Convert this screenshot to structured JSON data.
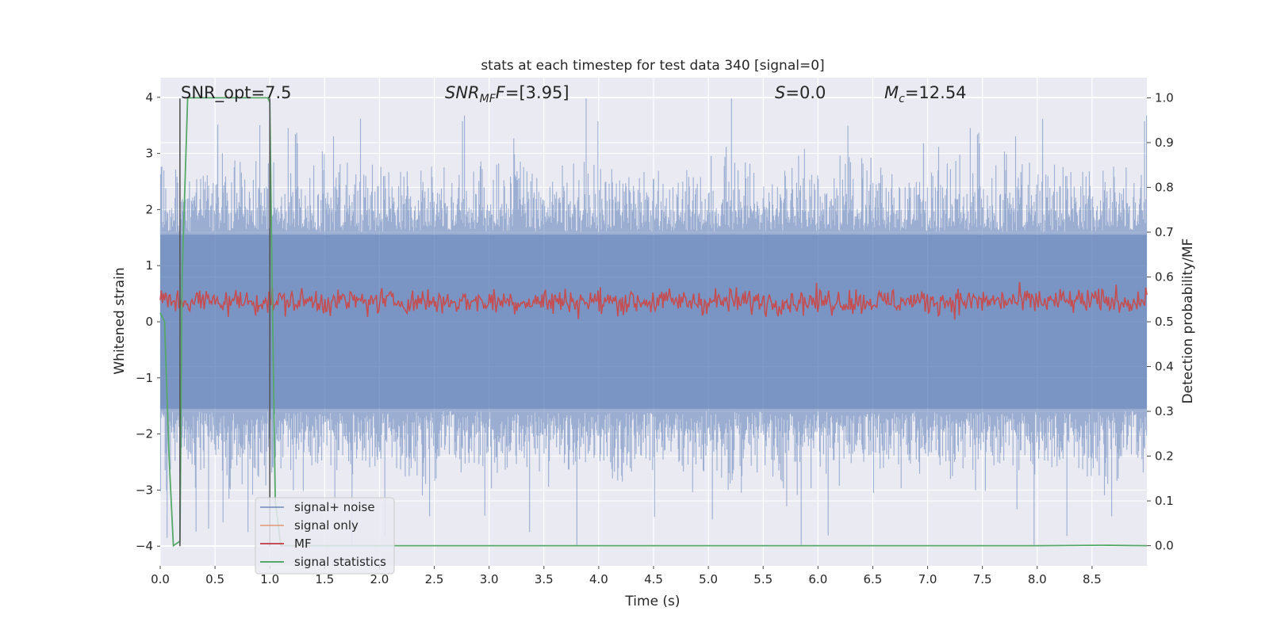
{
  "chart_data": {
    "type": "line",
    "title": "stats at each timestep for test data 340 [signal=0]",
    "xlabel": "Time (s)",
    "ylabel": "Whitened strain",
    "ylabel_right": "Detection probability/MF",
    "xlim": [
      0.0,
      9.0
    ],
    "ylim": [
      -4.35,
      4.35
    ],
    "ylim_right": [
      -0.045,
      1.045
    ],
    "xticks": [
      "0.0",
      "0.5",
      "1.0",
      "1.5",
      "2.0",
      "2.5",
      "3.0",
      "3.5",
      "4.0",
      "4.5",
      "5.0",
      "5.5",
      "6.0",
      "6.5",
      "7.0",
      "7.5",
      "8.0",
      "8.5"
    ],
    "yticks": [
      "4",
      "3",
      "2",
      "1",
      "0",
      "−1",
      "−2",
      "−3",
      "−4"
    ],
    "yticks_right": [
      "1.0",
      "0.9",
      "0.8",
      "0.7",
      "0.6",
      "0.5",
      "0.4",
      "0.3",
      "0.2",
      "0.1",
      "0.0"
    ],
    "grid": true,
    "background": "#eaeaf2",
    "legend_placement": "lower-left",
    "annotations": {
      "snr_opt": "SNR_opt=7.5",
      "snr_mf_main": "SNR",
      "snr_mf_sub": "MF",
      "snr_mf_rest": "=[3.95]",
      "s_main": "S",
      "s_rest": "=0.0",
      "mc_main": "M",
      "mc_sub": "c",
      "mc_rest": "=12.54"
    },
    "vertical_lines": [
      0.18,
      1.0
    ],
    "series": [
      {
        "name": "signal+ noise",
        "axis": "left",
        "color": "#4c72b0",
        "opacity": 0.5,
        "description_values": "noisy strain, approximately within [-4, 4]",
        "amplitude_envelope": 1.6
      },
      {
        "name": "signal only",
        "axis": "left",
        "color": "#dd8452",
        "values": []
      },
      {
        "name": "MF",
        "axis": "right",
        "color": "#c44e52",
        "range": [
          0.5,
          0.62
        ]
      },
      {
        "name": "signal statistics",
        "axis": "right",
        "color": "#55a868",
        "x": [
          0.0,
          0.04,
          0.08,
          0.12,
          0.18,
          0.2,
          0.25,
          0.3,
          0.5,
          0.7,
          0.9,
          0.98,
          1.0,
          1.02,
          1.05,
          1.1,
          2.0,
          3.0,
          4.0,
          5.0,
          6.0,
          7.0,
          8.0,
          8.6,
          9.0
        ],
        "y": [
          0.52,
          0.5,
          0.2,
          0.0,
          0.01,
          0.6,
          1.0,
          1.0,
          1.0,
          1.0,
          1.0,
          1.0,
          0.99,
          0.6,
          0.1,
          0.0,
          0.0,
          0.0,
          0.0,
          0.0,
          0.0,
          0.0,
          0.0,
          0.001,
          0.0
        ]
      }
    ]
  }
}
